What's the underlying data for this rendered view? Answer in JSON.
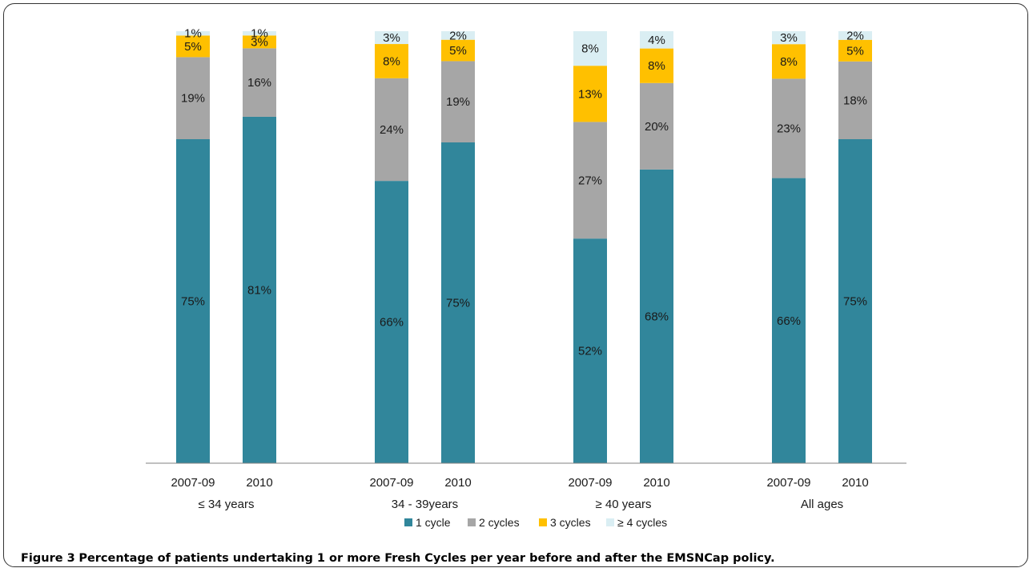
{
  "chart_data": {
    "type": "bar",
    "stacked": true,
    "percent": true,
    "groups": [
      {
        "label": "≤ 34 years",
        "bars": [
          "2007-09",
          "2010"
        ]
      },
      {
        "label": "34 - 39years",
        "bars": [
          "2007-09",
          "2010"
        ]
      },
      {
        "label": "≥ 40 years",
        "bars": [
          "2007-09",
          "2010"
        ]
      },
      {
        "label": "All ages",
        "bars": [
          "2007-09",
          "2010"
        ]
      }
    ],
    "categories": [
      "2007-09",
      "2010",
      "2007-09",
      "2010",
      "2007-09",
      "2010",
      "2007-09",
      "2010"
    ],
    "series": [
      {
        "name": "1 cycle",
        "color": "#31869b",
        "values": [
          75,
          81,
          66,
          75,
          52,
          68,
          66,
          75
        ]
      },
      {
        "name": "2 cycles",
        "color": "#a6a6a6",
        "values": [
          19,
          16,
          24,
          19,
          27,
          20,
          23,
          18
        ]
      },
      {
        "name": "3 cycles",
        "color": "#ffc000",
        "values": [
          5,
          3,
          8,
          5,
          13,
          8,
          8,
          5
        ]
      },
      {
        "name": "≥ 4 cycles",
        "color": "#daeef3",
        "values": [
          1,
          1,
          3,
          2,
          8,
          4,
          3,
          2
        ]
      }
    ],
    "data_labels": [
      [
        "75%",
        "81%",
        "66%",
        "75%",
        "52%",
        "68%",
        "66%",
        "75%"
      ],
      [
        "19%",
        "16%",
        "24%",
        "19%",
        "27%",
        "20%",
        "23%",
        "18%"
      ],
      [
        "5%",
        "3%",
        "8%",
        "5%",
        "13%",
        "8%",
        "8%",
        "5%"
      ],
      [
        "1%",
        "1%",
        "3%",
        "2%",
        "8%",
        "4%",
        "3%",
        "2%"
      ]
    ],
    "tick_labels": [
      "2007-09",
      "2010",
      "2007-09",
      "2010",
      "2007-09",
      "2010",
      "2007-09",
      "2010"
    ],
    "ylim": [
      0,
      100
    ],
    "grid": false,
    "legend_position": "bottom"
  },
  "caption": {
    "label": "Figure 3",
    "text": "Percentage of patients undertaking 1 or more Fresh Cycles per year before and after the EMSNCap policy."
  }
}
